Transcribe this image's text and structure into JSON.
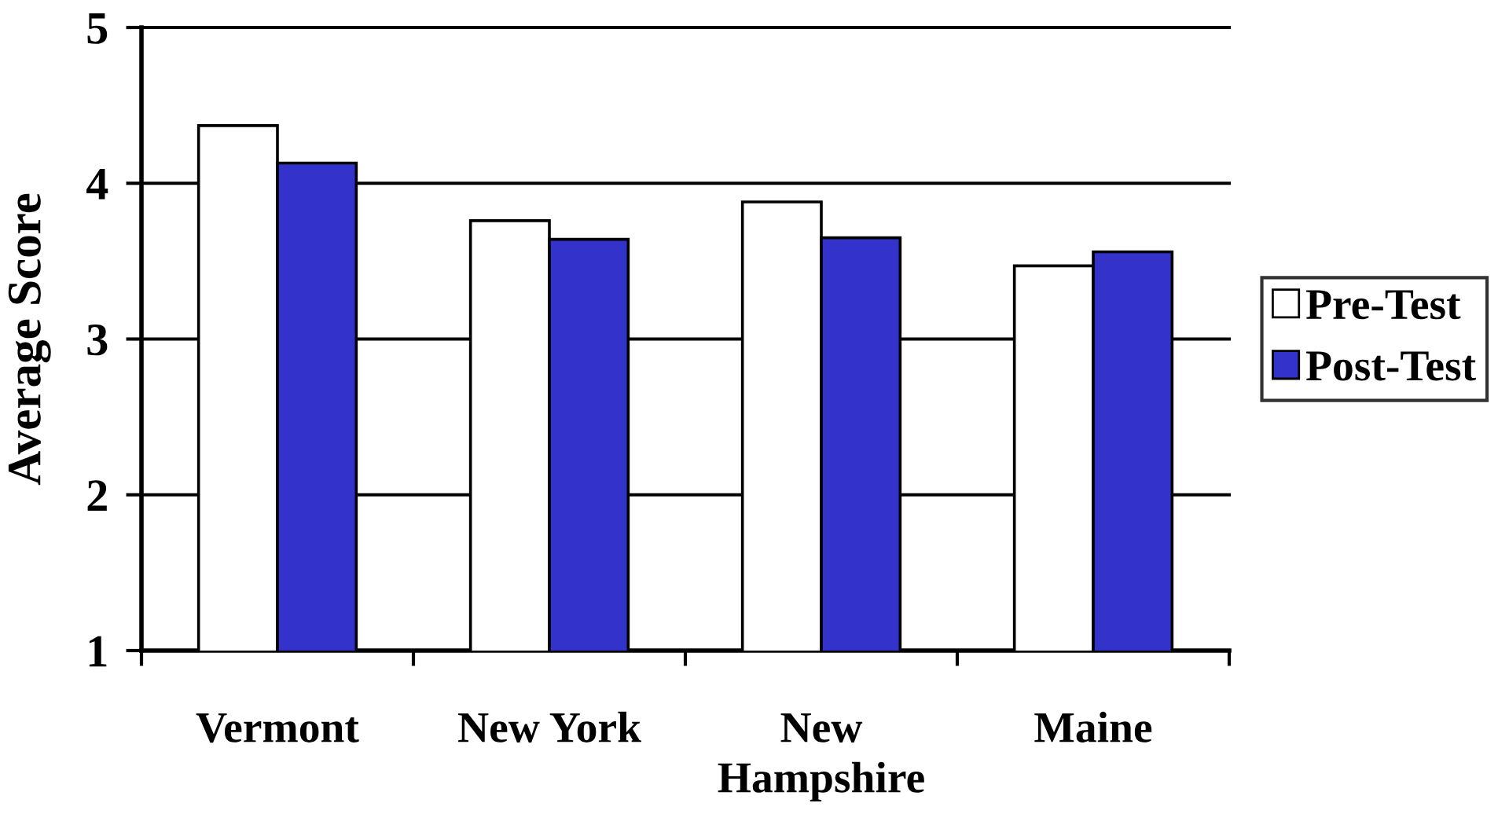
{
  "chart_data": {
    "type": "bar",
    "ylabel": "Average Score",
    "categories": [
      "Vermont",
      "New York",
      "New\nHampshire",
      "Maine"
    ],
    "series": [
      {
        "name": "Pre-Test",
        "color": "#ffffff",
        "values": [
          4.37,
          3.76,
          3.88,
          3.47
        ]
      },
      {
        "name": "Post-Test",
        "color": "#3333cc",
        "values": [
          4.13,
          3.64,
          3.65,
          3.56
        ]
      }
    ],
    "ylim": [
      1,
      5
    ],
    "yticks": [
      1,
      2,
      3,
      4,
      5
    ],
    "grid": "y",
    "legend": "right"
  }
}
